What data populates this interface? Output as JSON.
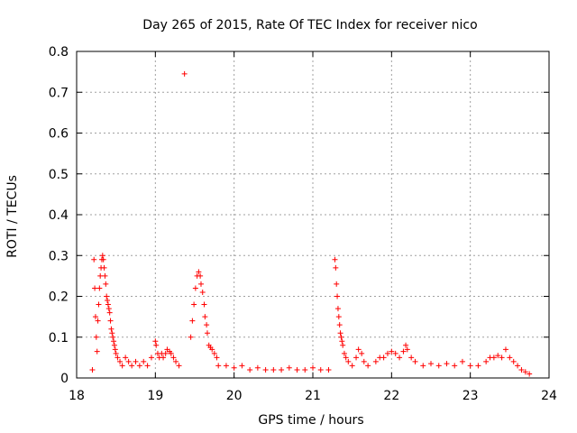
{
  "chart_data": {
    "type": "scatter",
    "title": "Day 265 of 2015, Rate Of TEC Index for receiver nico",
    "xlabel": "GPS time / hours",
    "ylabel": "ROTI / TECUs",
    "xlim": [
      18,
      24
    ],
    "ylim": [
      0,
      0.8
    ],
    "xticks": [
      "18",
      "19",
      "20",
      "21",
      "22",
      "23",
      "24"
    ],
    "yticks": [
      "0",
      "0.1",
      "0.2",
      "0.3",
      "0.4",
      "0.5",
      "0.6",
      "0.7",
      "0.8"
    ],
    "grid": true,
    "marker": "+",
    "color": "#ff0000",
    "series": [
      {
        "points": [
          [
            18.2,
            0.02
          ],
          [
            18.22,
            0.29
          ],
          [
            18.23,
            0.22
          ],
          [
            18.24,
            0.15
          ],
          [
            18.25,
            0.1
          ],
          [
            18.26,
            0.065
          ],
          [
            18.27,
            0.14
          ],
          [
            18.28,
            0.18
          ],
          [
            18.29,
            0.22
          ],
          [
            18.3,
            0.25
          ],
          [
            18.31,
            0.27
          ],
          [
            18.32,
            0.29
          ],
          [
            18.33,
            0.3
          ],
          [
            18.34,
            0.29
          ],
          [
            18.35,
            0.27
          ],
          [
            18.36,
            0.25
          ],
          [
            18.37,
            0.23
          ],
          [
            18.38,
            0.2
          ],
          [
            18.39,
            0.19
          ],
          [
            18.4,
            0.18
          ],
          [
            18.41,
            0.17
          ],
          [
            18.42,
            0.16
          ],
          [
            18.43,
            0.14
          ],
          [
            18.44,
            0.12
          ],
          [
            18.45,
            0.11
          ],
          [
            18.46,
            0.1
          ],
          [
            18.47,
            0.09
          ],
          [
            18.48,
            0.08
          ],
          [
            18.49,
            0.07
          ],
          [
            18.5,
            0.06
          ],
          [
            18.52,
            0.05
          ],
          [
            18.55,
            0.04
          ],
          [
            18.58,
            0.03
          ],
          [
            18.62,
            0.05
          ],
          [
            18.66,
            0.04
          ],
          [
            18.7,
            0.03
          ],
          [
            18.75,
            0.04
          ],
          [
            18.8,
            0.03
          ],
          [
            18.85,
            0.04
          ],
          [
            18.9,
            0.03
          ],
          [
            18.95,
            0.05
          ],
          [
            19.0,
            0.09
          ],
          [
            19.01,
            0.08
          ],
          [
            19.03,
            0.06
          ],
          [
            19.05,
            0.05
          ],
          [
            19.08,
            0.06
          ],
          [
            19.1,
            0.05
          ],
          [
            19.13,
            0.06
          ],
          [
            19.15,
            0.07
          ],
          [
            19.18,
            0.065
          ],
          [
            19.2,
            0.06
          ],
          [
            19.23,
            0.05
          ],
          [
            19.26,
            0.04
          ],
          [
            19.3,
            0.03
          ],
          [
            19.37,
            0.745
          ],
          [
            19.45,
            0.1
          ],
          [
            19.47,
            0.14
          ],
          [
            19.49,
            0.18
          ],
          [
            19.51,
            0.22
          ],
          [
            19.53,
            0.25
          ],
          [
            19.55,
            0.26
          ],
          [
            19.57,
            0.25
          ],
          [
            19.58,
            0.23
          ],
          [
            19.6,
            0.21
          ],
          [
            19.62,
            0.18
          ],
          [
            19.63,
            0.15
          ],
          [
            19.65,
            0.13
          ],
          [
            19.66,
            0.11
          ],
          [
            19.68,
            0.08
          ],
          [
            19.7,
            0.075
          ],
          [
            19.72,
            0.07
          ],
          [
            19.75,
            0.06
          ],
          [
            19.78,
            0.05
          ],
          [
            19.8,
            0.03
          ],
          [
            19.9,
            0.03
          ],
          [
            20.0,
            0.025
          ],
          [
            20.1,
            0.03
          ],
          [
            20.2,
            0.02
          ],
          [
            20.3,
            0.025
          ],
          [
            20.4,
            0.02
          ],
          [
            20.5,
            0.02
          ],
          [
            20.6,
            0.02
          ],
          [
            20.7,
            0.025
          ],
          [
            20.8,
            0.02
          ],
          [
            20.9,
            0.02
          ],
          [
            21.0,
            0.025
          ],
          [
            21.1,
            0.02
          ],
          [
            21.2,
            0.02
          ],
          [
            21.28,
            0.29
          ],
          [
            21.29,
            0.27
          ],
          [
            21.3,
            0.23
          ],
          [
            21.31,
            0.2
          ],
          [
            21.32,
            0.17
          ],
          [
            21.33,
            0.15
          ],
          [
            21.34,
            0.13
          ],
          [
            21.35,
            0.11
          ],
          [
            21.36,
            0.1
          ],
          [
            21.37,
            0.09
          ],
          [
            21.38,
            0.08
          ],
          [
            21.4,
            0.06
          ],
          [
            21.42,
            0.05
          ],
          [
            21.45,
            0.04
          ],
          [
            21.5,
            0.03
          ],
          [
            21.55,
            0.05
          ],
          [
            21.58,
            0.07
          ],
          [
            21.62,
            0.06
          ],
          [
            21.65,
            0.04
          ],
          [
            21.7,
            0.03
          ],
          [
            21.8,
            0.04
          ],
          [
            21.85,
            0.05
          ],
          [
            21.9,
            0.05
          ],
          [
            21.95,
            0.06
          ],
          [
            22.0,
            0.065
          ],
          [
            22.05,
            0.06
          ],
          [
            22.1,
            0.05
          ],
          [
            22.15,
            0.065
          ],
          [
            22.18,
            0.08
          ],
          [
            22.2,
            0.07
          ],
          [
            22.25,
            0.05
          ],
          [
            22.3,
            0.04
          ],
          [
            22.4,
            0.03
          ],
          [
            22.5,
            0.035
          ],
          [
            22.6,
            0.03
          ],
          [
            22.7,
            0.035
          ],
          [
            22.8,
            0.03
          ],
          [
            22.9,
            0.04
          ],
          [
            23.0,
            0.03
          ],
          [
            23.1,
            0.03
          ],
          [
            23.2,
            0.04
          ],
          [
            23.25,
            0.05
          ],
          [
            23.3,
            0.05
          ],
          [
            23.35,
            0.055
          ],
          [
            23.4,
            0.05
          ],
          [
            23.45,
            0.07
          ],
          [
            23.5,
            0.05
          ],
          [
            23.55,
            0.04
          ],
          [
            23.6,
            0.03
          ],
          [
            23.65,
            0.02
          ],
          [
            23.7,
            0.015
          ],
          [
            23.75,
            0.01
          ]
        ]
      }
    ]
  }
}
